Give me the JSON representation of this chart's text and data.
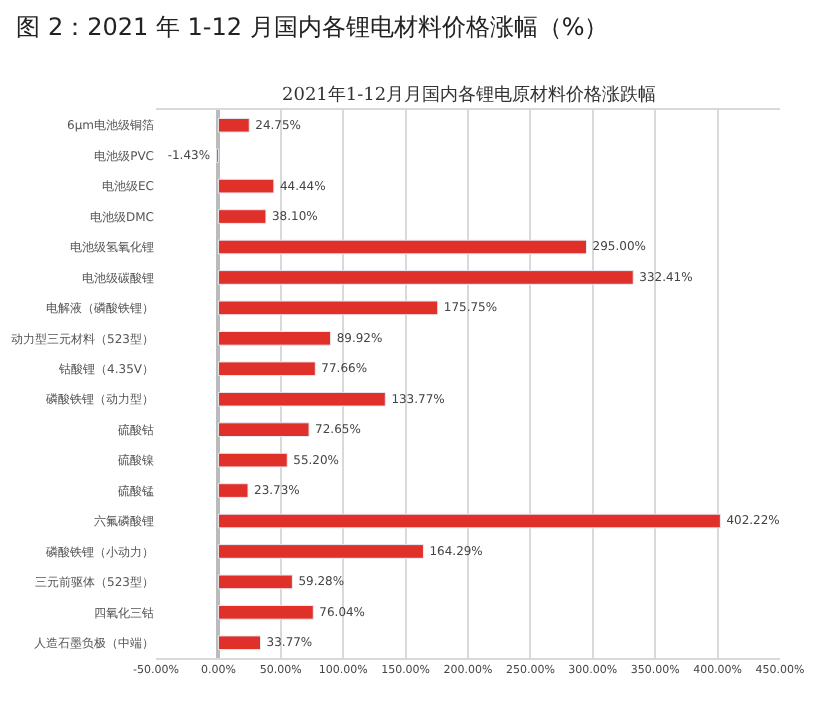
{
  "chart_data": {
    "type": "bar",
    "orientation": "horizontal",
    "title": "图 2：2021 年 1-12 月国内各锂电材料价格涨幅（%）",
    "subtitle": "2021年1-12月月国内各锂电原材料价格涨跌幅",
    "categories": [
      "6μm电池级铜箔",
      "电池级PVC",
      "电池级EC",
      "电池级DMC",
      "电池级氢氧化锂",
      "电池级碳酸锂",
      "电解液（磷酸铁锂）",
      "动力型三元材料（523型）",
      "钴酸锂（4.35V）",
      "磷酸铁锂（动力型）",
      "硫酸钴",
      "硫酸镍",
      "硫酸锰",
      "六氟磷酸锂",
      "磷酸铁锂（小动力）",
      "三元前驱体（523型）",
      "四氧化三钴",
      "人造石墨负极（中端）"
    ],
    "values": [
      24.75,
      -1.43,
      44.44,
      38.1,
      295.0,
      332.41,
      175.75,
      89.92,
      77.66,
      133.77,
      72.65,
      55.2,
      23.73,
      402.22,
      164.29,
      59.28,
      76.04,
      33.77
    ],
    "value_labels": [
      "24.75%",
      "-1.43%",
      "44.44%",
      "38.10%",
      "295.00%",
      "332.41%",
      "175.75%",
      "89.92%",
      "77.66%",
      "133.77%",
      "72.65%",
      "55.20%",
      "23.73%",
      "402.22%",
      "164.29%",
      "59.28%",
      "76.04%",
      "33.77%"
    ],
    "color": "#e0302a",
    "xlim": [
      -50,
      450
    ],
    "xticks": [
      {
        "value": -50,
        "label": "-50.00%"
      },
      {
        "value": 0,
        "label": "0.00%"
      },
      {
        "value": 50,
        "label": "50.00%"
      },
      {
        "value": 100,
        "label": "100.00%"
      },
      {
        "value": 150,
        "label": "150.00%"
      },
      {
        "value": 200,
        "label": "200.00%"
      },
      {
        "value": 250,
        "label": "250.00%"
      },
      {
        "value": 300,
        "label": "300.00%"
      },
      {
        "value": 350,
        "label": "350.00%"
      },
      {
        "value": 400,
        "label": "400.00%"
      },
      {
        "value": 450,
        "label": "450.00%"
      }
    ],
    "grid": "x"
  }
}
